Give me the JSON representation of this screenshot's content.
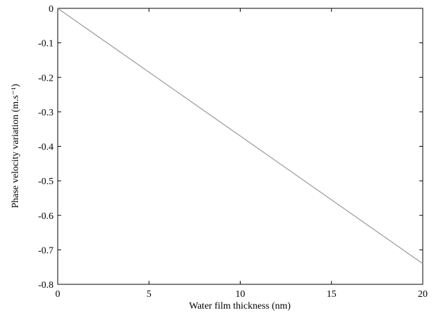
{
  "chart_data": {
    "type": "line",
    "xlabel": "Water film thickness (nm)",
    "ylabel": "Phase velocity variation (m.s⁻¹)",
    "x": [
      0,
      20
    ],
    "series": [
      {
        "color": "#9a9a9a",
        "values": [
          0,
          -0.74
        ]
      }
    ],
    "xlim": [
      0,
      20
    ],
    "xticks": [
      0,
      5,
      10,
      15,
      20
    ],
    "ylim": [
      -0.8,
      0
    ],
    "yticks": [
      0,
      -0.1,
      -0.2,
      -0.3,
      -0.4,
      -0.5,
      -0.6,
      -0.7,
      -0.8
    ],
    "grid": false
  }
}
